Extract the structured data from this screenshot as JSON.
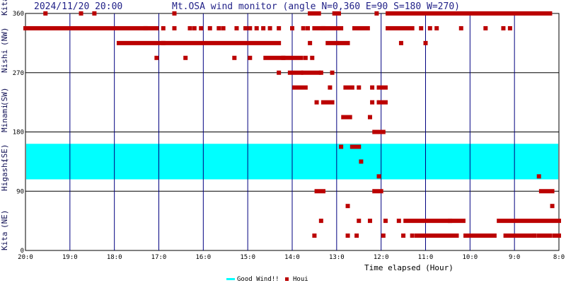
{
  "header": {
    "datetime": "2024/11/20 20:00",
    "title": "Mt.OSA wind monitor (angle N=0,360 E=90 S=180 W=270)"
  },
  "legend": {
    "good_wind_label": "Good Wind!!",
    "houi_label": "Houi"
  },
  "colors": {
    "good_band": "#00ffff",
    "points": "#bb0000",
    "vgrid": "#000080",
    "hgrid": "#000000"
  },
  "chart_data": {
    "type": "scatter",
    "title": "Mt.OSA wind monitor (angle N=0,360 E=90 S=180 W=270)",
    "xlabel": "Time elapsed (Hour)",
    "ylabel": "",
    "xlim": [
      20,
      8
    ],
    "ylim": [
      0,
      360
    ],
    "x_ticks": [
      "20:0",
      "19:0",
      "18:0",
      "17:0",
      "16:0",
      "15:0",
      "14:0",
      "13:0",
      "12:0",
      "11:0",
      "10:0",
      "9:0",
      "8:0"
    ],
    "y_ticks": [
      "0",
      "90",
      "180",
      "270",
      "360"
    ],
    "side_labels": [
      "Kita",
      "(NE)",
      "Higashi",
      "(SE)",
      "Minami",
      "(SW)",
      "Nishi",
      "(NW)",
      "Kita"
    ],
    "good_wind_band": [
      108,
      162
    ],
    "series": [
      {
        "name": "Houi",
        "runs": [
          {
            "x1": 20.0,
            "x2": 17.05,
            "y": 337.5
          },
          {
            "x1": 17.9,
            "x2": 16.9,
            "y": 315
          },
          {
            "x1": 16.9,
            "x2": 14.3,
            "y": 315
          },
          {
            "x1": 14.6,
            "x2": 14.2,
            "y": 292.5
          },
          {
            "x1": 14.2,
            "x2": 13.8,
            "y": 292.5
          },
          {
            "x1": 13.5,
            "x2": 12.9,
            "y": 337.5
          },
          {
            "x1": 12.6,
            "x2": 12.3,
            "y": 337.5
          },
          {
            "x1": 11.85,
            "x2": 11.3,
            "y": 337.5
          },
          {
            "x1": 11.85,
            "x2": 8.2,
            "y": 360
          },
          {
            "x1": 13.6,
            "x2": 13.4,
            "y": 360
          },
          {
            "x1": 13.05,
            "x2": 12.95,
            "y": 360
          },
          {
            "x1": 13.2,
            "x2": 13.0,
            "y": 315
          },
          {
            "x1": 12.95,
            "x2": 12.75,
            "y": 315
          },
          {
            "x1": 14.05,
            "x2": 13.8,
            "y": 270
          },
          {
            "x1": 13.75,
            "x2": 13.4,
            "y": 270
          },
          {
            "x1": 13.95,
            "x2": 13.7,
            "y": 247.5
          },
          {
            "x1": 12.8,
            "x2": 12.65,
            "y": 247.5
          },
          {
            "x1": 12.05,
            "x2": 11.9,
            "y": 247.5
          },
          {
            "x1": 13.3,
            "x2": 13.1,
            "y": 225
          },
          {
            "x1": 12.05,
            "x2": 11.9,
            "y": 225
          },
          {
            "x1": 12.85,
            "x2": 12.7,
            "y": 202.5
          },
          {
            "x1": 12.15,
            "x2": 11.95,
            "y": 180
          },
          {
            "x1": 12.65,
            "x2": 12.5,
            "y": 157.5
          },
          {
            "x1": 13.45,
            "x2": 13.3,
            "y": 90
          },
          {
            "x1": 12.15,
            "x2": 12.0,
            "y": 90
          },
          {
            "x1": 8.4,
            "x2": 8.15,
            "y": 90
          },
          {
            "x1": 11.45,
            "x2": 10.15,
            "y": 45
          },
          {
            "x1": 9.35,
            "x2": 8.0,
            "y": 45
          },
          {
            "x1": 11.2,
            "x2": 10.3,
            "y": 22.5
          },
          {
            "x1": 10.1,
            "x2": 9.45,
            "y": 22.5
          },
          {
            "x1": 9.2,
            "x2": 8.55,
            "y": 22.5
          },
          {
            "x1": 8.45,
            "x2": 8.2,
            "y": 22.5
          },
          {
            "x1": 8.1,
            "x2": 8.0,
            "y": 22.5
          }
        ],
        "points": [
          [
            19.55,
            360
          ],
          [
            18.75,
            360
          ],
          [
            18.45,
            360
          ],
          [
            16.65,
            360
          ],
          [
            12.1,
            360
          ],
          [
            17.3,
            337.5
          ],
          [
            16.9,
            337.5
          ],
          [
            16.65,
            337.5
          ],
          [
            16.3,
            337.5
          ],
          [
            16.2,
            337.5
          ],
          [
            16.05,
            337.5
          ],
          [
            15.85,
            337.5
          ],
          [
            15.65,
            337.5
          ],
          [
            15.55,
            337.5
          ],
          [
            15.25,
            337.5
          ],
          [
            15.05,
            337.5
          ],
          [
            14.95,
            337.5
          ],
          [
            14.8,
            337.5
          ],
          [
            14.65,
            337.5
          ],
          [
            14.5,
            337.5
          ],
          [
            14.3,
            337.5
          ],
          [
            14.0,
            337.5
          ],
          [
            13.75,
            337.5
          ],
          [
            13.65,
            337.5
          ],
          [
            13.3,
            337.5
          ],
          [
            11.1,
            337.5
          ],
          [
            10.9,
            337.5
          ],
          [
            10.75,
            337.5
          ],
          [
            10.2,
            337.5
          ],
          [
            9.65,
            337.5
          ],
          [
            9.25,
            337.5
          ],
          [
            9.1,
            337.5
          ],
          [
            13.6,
            315
          ],
          [
            11.55,
            315
          ],
          [
            11.0,
            315
          ],
          [
            17.05,
            292.5
          ],
          [
            16.4,
            292.5
          ],
          [
            15.3,
            292.5
          ],
          [
            14.95,
            292.5
          ],
          [
            13.7,
            292.5
          ],
          [
            13.55,
            292.5
          ],
          [
            14.3,
            270
          ],
          [
            13.35,
            270
          ],
          [
            13.1,
            270
          ],
          [
            13.15,
            247.5
          ],
          [
            12.5,
            247.5
          ],
          [
            12.2,
            247.5
          ],
          [
            13.45,
            225
          ],
          [
            12.2,
            225
          ],
          [
            12.25,
            202.5
          ],
          [
            12.9,
            157.5
          ],
          [
            12.45,
            135
          ],
          [
            12.05,
            112.5
          ],
          [
            8.45,
            112.5
          ],
          [
            12.75,
            67.5
          ],
          [
            8.15,
            67.5
          ],
          [
            13.35,
            45
          ],
          [
            12.5,
            45
          ],
          [
            12.25,
            45
          ],
          [
            11.9,
            45
          ],
          [
            11.6,
            45
          ],
          [
            10.45,
            45
          ],
          [
            13.5,
            22.5
          ],
          [
            12.75,
            22.5
          ],
          [
            12.55,
            22.5
          ],
          [
            11.95,
            22.5
          ],
          [
            11.5,
            22.5
          ],
          [
            11.3,
            22.5
          ],
          [
            8.55,
            22.5
          ]
        ]
      }
    ]
  }
}
